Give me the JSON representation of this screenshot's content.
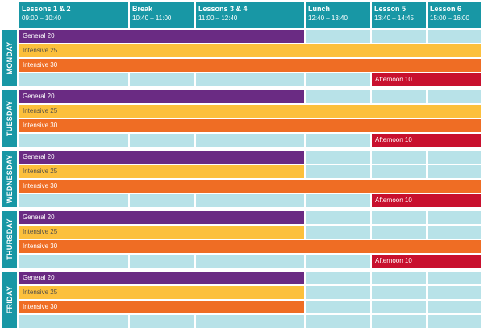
{
  "columns": [
    {
      "title": "Lessons 1 & 2",
      "time": "09:00 – 10:40"
    },
    {
      "title": "Break",
      "time": "10:40 – 11:00"
    },
    {
      "title": "Lessons 3 & 4",
      "time": "11:00 – 12:40"
    },
    {
      "title": "Lunch",
      "time": "12:40 – 13:40"
    },
    {
      "title": "Lesson 5",
      "time": "13:40 – 14:45"
    },
    {
      "title": "Lesson 6",
      "time": "15:00 – 16:00"
    }
  ],
  "days": [
    {
      "name": "MONDAY",
      "rows": [
        {
          "course": "General 20",
          "type": "general",
          "span": "to-lunch"
        },
        {
          "course": "Intensive 25",
          "type": "intensive25",
          "span": "full"
        },
        {
          "course": "Intensive 30",
          "type": "intensive30",
          "span": "full"
        },
        {
          "course": "Afternoon 10",
          "type": "afternoon",
          "span": "afternoon"
        }
      ]
    },
    {
      "name": "TUESDAY",
      "rows": [
        {
          "course": "General 20",
          "type": "general",
          "span": "to-lunch"
        },
        {
          "course": "Intensive 25",
          "type": "intensive25",
          "span": "full"
        },
        {
          "course": "Intensive 30",
          "type": "intensive30",
          "span": "full"
        },
        {
          "course": "Afternoon 10",
          "type": "afternoon",
          "span": "afternoon"
        }
      ]
    },
    {
      "name": "WEDNESDAY",
      "rows": [
        {
          "course": "General 20",
          "type": "general",
          "span": "to-lunch"
        },
        {
          "course": "Intensive 25",
          "type": "intensive25",
          "span": "to-lunch"
        },
        {
          "course": "Intensive 30",
          "type": "intensive30",
          "span": "full"
        },
        {
          "course": "Afternoon 10",
          "type": "afternoon",
          "span": "afternoon"
        }
      ]
    },
    {
      "name": "THURSDAY",
      "rows": [
        {
          "course": "General 20",
          "type": "general",
          "span": "to-lunch"
        },
        {
          "course": "Intensive 25",
          "type": "intensive25",
          "span": "to-lunch"
        },
        {
          "course": "Intensive 30",
          "type": "intensive30",
          "span": "full"
        },
        {
          "course": "Afternoon 10",
          "type": "afternoon",
          "span": "afternoon"
        }
      ]
    },
    {
      "name": "FRIDAY",
      "rows": [
        {
          "course": "General 20",
          "type": "general",
          "span": "to-lunch"
        },
        {
          "course": "Intensive 25",
          "type": "intensive25",
          "span": "to-lunch"
        },
        {
          "course": "Intensive 30",
          "type": "intensive30",
          "span": "to-lunch"
        },
        {
          "course": "",
          "type": "empty",
          "span": "none"
        }
      ]
    }
  ],
  "colors": {
    "header": "#1897a5",
    "empty_cell": "#b8e2e8",
    "general": "#6a2b83",
    "intensive25": "#fcc03c",
    "intensive30": "#ef6d24",
    "afternoon": "#c8102e"
  }
}
